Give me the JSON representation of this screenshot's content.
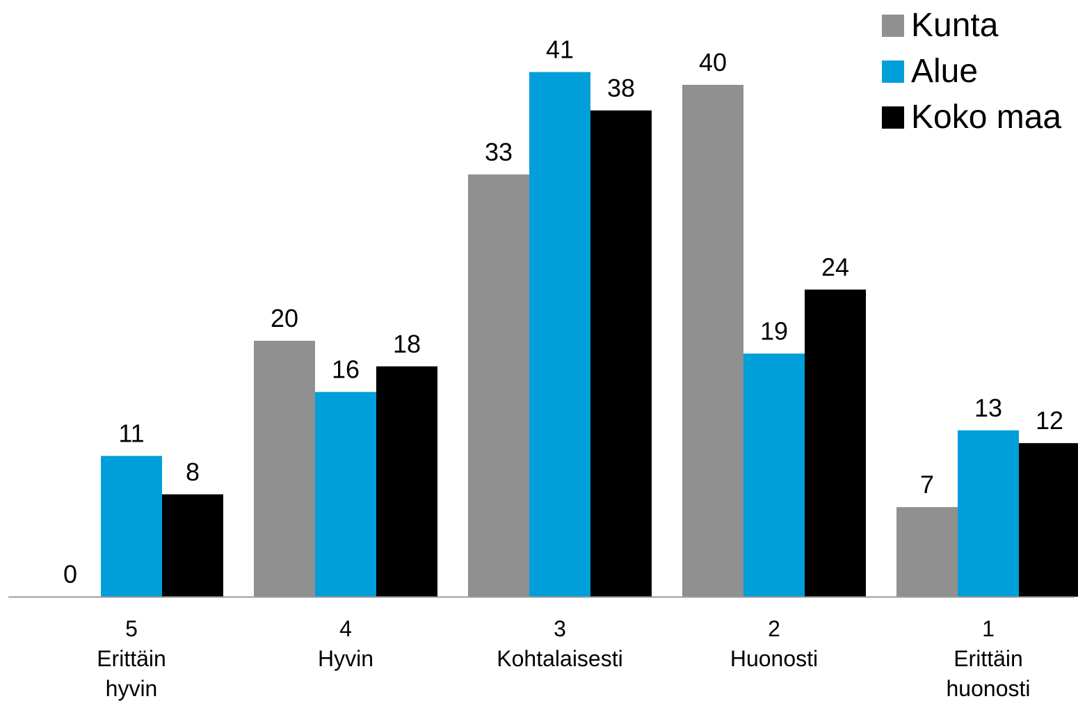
{
  "chart_data": {
    "type": "bar",
    "title": "",
    "xlabel": "",
    "ylabel": "",
    "ylim": [
      0,
      41
    ],
    "grid": false,
    "legend_position": "top-right",
    "categories": [
      [
        "5",
        "Erittäin",
        "hyvin"
      ],
      [
        "4",
        "Hyvin"
      ],
      [
        "3",
        "Kohtalaisesti"
      ],
      [
        "2",
        "Huonosti"
      ],
      [
        "1",
        "Erittäin",
        "huonosti"
      ]
    ],
    "series": [
      {
        "name": "Kunta",
        "color": "#909090",
        "values": [
          0,
          20,
          33,
          40,
          7
        ]
      },
      {
        "name": "Alue",
        "color": "#009fda",
        "values": [
          11,
          16,
          41,
          19,
          13
        ]
      },
      {
        "name": "Koko maa",
        "color": "#000000",
        "values": [
          8,
          18,
          38,
          24,
          12
        ]
      }
    ]
  }
}
